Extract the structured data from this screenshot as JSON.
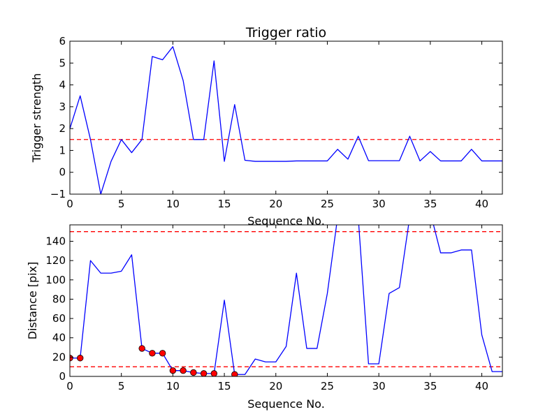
{
  "chart_data": [
    {
      "type": "line",
      "title": "Trigger ratio",
      "xlabel": "Sequence No.",
      "ylabel": "Trigger strength",
      "xlim": [
        0,
        42
      ],
      "ylim": [
        -1,
        6
      ],
      "xticks": [
        0,
        5,
        10,
        15,
        20,
        25,
        30,
        35,
        40
      ],
      "yticks": [
        -1,
        0,
        1,
        2,
        3,
        4,
        5,
        6
      ],
      "grid": false,
      "series": [
        {
          "color": "#0000ff",
          "x": [
            0,
            1,
            2,
            3,
            4,
            5,
            6,
            7,
            8,
            9,
            10,
            11,
            12,
            13,
            14,
            15,
            16,
            17,
            18,
            19,
            20,
            21,
            22,
            23,
            24,
            25,
            26,
            27,
            28,
            29,
            30,
            31,
            32,
            33,
            34,
            35,
            36,
            37,
            38,
            39,
            40,
            41,
            42
          ],
          "y": [
            2.0,
            3.5,
            1.5,
            -1.0,
            0.5,
            1.5,
            0.9,
            1.5,
            5.3,
            5.15,
            5.75,
            4.2,
            1.5,
            1.5,
            5.1,
            0.5,
            3.1,
            0.55,
            0.5,
            0.5,
            0.5,
            0.5,
            0.52,
            0.52,
            0.52,
            0.52,
            1.05,
            0.6,
            1.65,
            0.53,
            0.53,
            0.53,
            0.53,
            1.65,
            0.52,
            0.95,
            0.52,
            0.52,
            0.52,
            1.05,
            0.52,
            0.52,
            0.52
          ]
        }
      ],
      "hlines": [
        {
          "y": 1.5,
          "color": "#ff0000",
          "style": "dashed"
        }
      ]
    },
    {
      "type": "line",
      "title": "",
      "xlabel": "Sequence No.",
      "ylabel": "Distance [pix]",
      "xlim": [
        0,
        42
      ],
      "ylim": [
        0,
        157
      ],
      "xticks": [
        0,
        5,
        10,
        15,
        20,
        25,
        30,
        35,
        40
      ],
      "yticks": [
        0,
        20,
        40,
        60,
        80,
        100,
        120,
        140
      ],
      "grid": false,
      "series": [
        {
          "color": "#0000ff",
          "x": [
            0,
            1,
            2,
            3,
            4,
            5,
            6,
            7,
            8,
            9,
            10,
            11,
            12,
            13,
            14,
            15,
            16,
            17,
            18,
            19,
            20,
            21,
            22,
            23,
            24,
            25,
            26,
            27,
            28,
            29,
            30,
            31,
            32,
            33,
            34,
            35,
            36,
            37,
            38,
            39,
            40,
            41,
            42
          ],
          "y": [
            19,
            19,
            120,
            107,
            107,
            109,
            126,
            29,
            24,
            24,
            6,
            6,
            4,
            3,
            3,
            79,
            2,
            2,
            18,
            15,
            15,
            31,
            107,
            29,
            29,
            86,
            165,
            175,
            165,
            13,
            13,
            86,
            92,
            165,
            175,
            170,
            128,
            128,
            131,
            131,
            43,
            5,
            5
          ]
        }
      ],
      "markers": {
        "color": "#ff0000",
        "x": [
          0,
          1,
          7,
          8,
          9,
          10,
          11,
          12,
          13,
          14,
          16
        ],
        "y": [
          19,
          19,
          29,
          24,
          24,
          6,
          6,
          4,
          3,
          3,
          2
        ]
      },
      "hlines": [
        {
          "y": 150,
          "color": "#ff0000",
          "style": "dashed"
        },
        {
          "y": 10,
          "color": "#ff0000",
          "style": "dashed"
        }
      ]
    }
  ]
}
